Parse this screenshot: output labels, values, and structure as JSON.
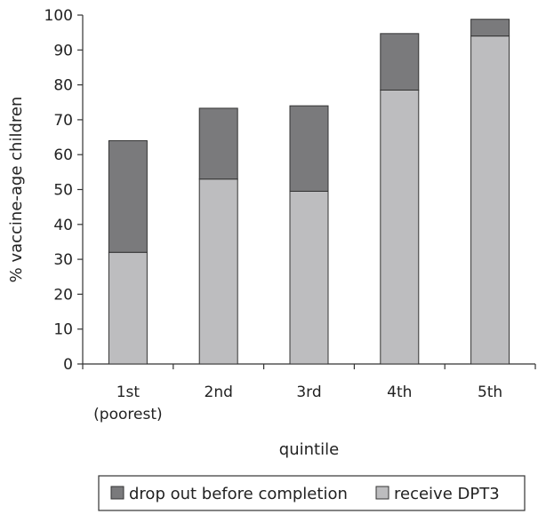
{
  "chart_data": {
    "type": "bar",
    "stacked": true,
    "categories": [
      "1st\n(poorest)",
      "2nd",
      "3rd",
      "4th",
      "5th"
    ],
    "xlabel": "quintile",
    "ylabel": "% vaccine-age children",
    "ylim": [
      0,
      100
    ],
    "yticks": [
      0,
      10,
      20,
      30,
      40,
      50,
      60,
      70,
      80,
      90,
      100
    ],
    "grid": false,
    "legend_position": "bottom",
    "series": [
      {
        "name": "receive DPT3",
        "color": "#bdbdbf",
        "values": [
          32,
          53,
          49.5,
          78.5,
          94
        ]
      },
      {
        "name": "drop out before completion",
        "color": "#7a7a7c",
        "values": [
          32,
          20.3,
          24.5,
          16.2,
          4.8
        ]
      }
    ],
    "legend_order": [
      1,
      0
    ]
  }
}
